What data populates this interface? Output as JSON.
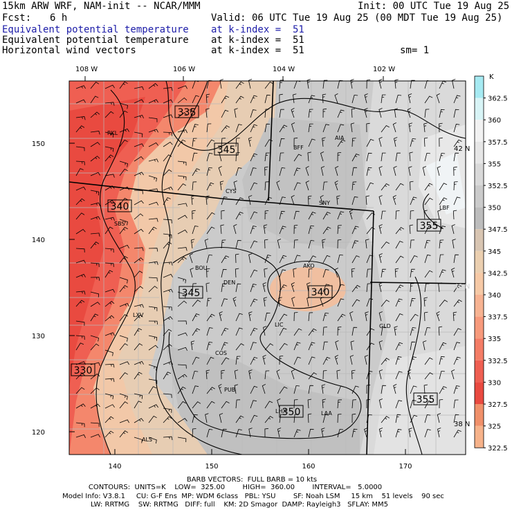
{
  "header": {
    "model": "15km ARW WRF, NAM-init -- NCAR/MMM",
    "init": "Init: 00 UTC Tue 19 Aug 25",
    "fcst_label": "Fcst:",
    "fcst_value": "6 h",
    "valid": "Valid: 06 UTC Tue 19 Aug 25 (00 MDT Tue 19 Aug 25)",
    "fields": [
      {
        "name": "Equivalent potential temperature",
        "level": "at k-index =  51",
        "color": "#1c1ca8"
      },
      {
        "name": "Equivalent potential temperature",
        "level": "at k-index =  51",
        "color": "#000000"
      },
      {
        "name": "Horizontal wind vectors",
        "level": "at k-index =  51",
        "color": "#000000"
      }
    ],
    "smoothing": "sm= 1"
  },
  "map": {
    "top_lon_labels": [
      "108 W",
      "106 W",
      "104 W",
      "102 W"
    ],
    "right_lat_labels": [
      "42 N",
      "40 N",
      "38 N"
    ],
    "left_ticks": [
      "150",
      "140",
      "130",
      "120"
    ],
    "bottom_ticks": [
      "140",
      "150",
      "160",
      "170"
    ],
    "stations": [
      "RKL",
      "BFF",
      "AIA",
      "CYS",
      "SNY",
      "SBS",
      "BOU",
      "DEN",
      "AKO",
      "LIC",
      "GLD",
      "LXV",
      "COS",
      "PUB",
      "LHX",
      "LAA",
      "ALS",
      "LBF"
    ],
    "contour_labels": [
      "335",
      "345",
      "340",
      "345",
      "340",
      "355",
      "330",
      "350",
      "355"
    ]
  },
  "colorbar": {
    "unit": "K",
    "levels": [
      "362.5",
      "360",
      "357.5",
      "355",
      "352.5",
      "350",
      "347.5",
      "345",
      "342.5",
      "340",
      "337.5",
      "335",
      "332.5",
      "330",
      "327.5",
      "325",
      "322.5"
    ],
    "colors": [
      "#a6eaf2",
      "#d8f4f6",
      "#f2f2f2",
      "#e6e6e6",
      "#d9d9d9",
      "#cbcbcb",
      "#bdbdbd",
      "#d8c5b2",
      "#ebcfb0",
      "#f6c9a6",
      "#f7b392",
      "#f79a7c",
      "#f47d66",
      "#ef5f52",
      "#e94a40",
      "#f0906a",
      "#f6b28a"
    ]
  },
  "footer": {
    "line1": "BARB VECTORS:  FULL BARB = 10 kts",
    "line2": "CONTOURS:  UNITS=K    LOW=  325.00        HIGH=  360.00        INTERVAL=   5.0000",
    "line3": "Model Info: V3.8.1     CU: G-F Ens  MP: WDM 6class   PBL: YSU        SF: Noah LSM     15 km    51 levels    90 sec",
    "line4": "LW: RRTMG    SW: RRTMG   DIFF: full    KM: 2D Smagor  DAMP: Rayleigh3   SFLAY: MM5"
  }
}
